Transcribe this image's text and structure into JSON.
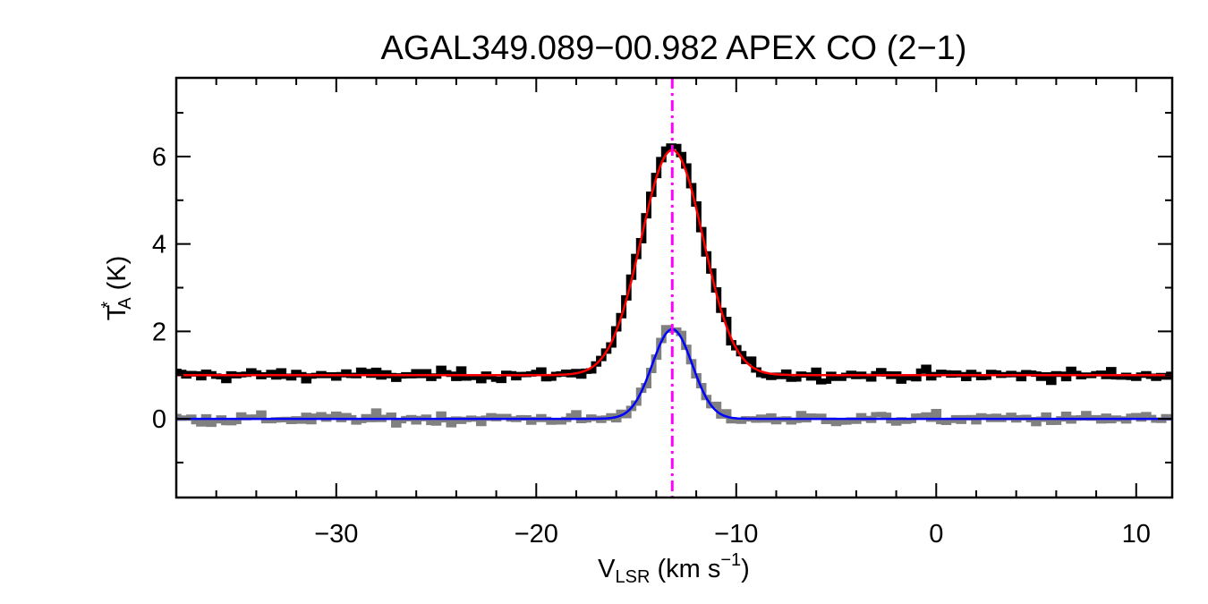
{
  "chart_data": {
    "type": "line",
    "title": "AGAL349.089−00.982  APEX CO (2−1)",
    "xlabel": {
      "main": "V",
      "sub": "LSR",
      "unit": " (km s",
      "sup": "−1",
      "close": ")"
    },
    "ylabel": {
      "main": "T",
      "sup": "*",
      "sub": "A",
      "unit": " (K)"
    },
    "xlim": [
      -38,
      11.8
    ],
    "ylim": [
      -1.8,
      7.8
    ],
    "xticks": [
      -30,
      -20,
      -10,
      0,
      10
    ],
    "xtick_labels": [
      "−30",
      "−20",
      "−10",
      "0",
      "10"
    ],
    "yticks": [
      0,
      2,
      4,
      6
    ],
    "ytick_labels": [
      "0",
      "2",
      "4",
      "6"
    ],
    "x_minor_step": 2,
    "y_minor_step": 1,
    "vline": {
      "x": -13.2,
      "color": "#ff00ff",
      "style": "dash-dot"
    },
    "series": [
      {
        "role": "spectrum",
        "color": "#000000",
        "offset": 1.0,
        "amplitude": 5.2,
        "center": -13.2,
        "sigma": 1.55,
        "noise": 0.13,
        "channel_width": 0.25
      },
      {
        "role": "fit",
        "color": "#ff0000",
        "offset": 1.0,
        "amplitude": 5.15,
        "center": -13.2,
        "sigma": 1.55
      },
      {
        "role": "spectrum",
        "color": "#808080",
        "offset": 0.0,
        "amplitude": 2.05,
        "center": -13.2,
        "sigma": 1.0,
        "noise": 0.13,
        "channel_width": 0.25
      },
      {
        "role": "fit",
        "color": "#0000ff",
        "offset": 0.0,
        "amplitude": 2.05,
        "center": -13.2,
        "sigma": 1.0
      }
    ]
  }
}
